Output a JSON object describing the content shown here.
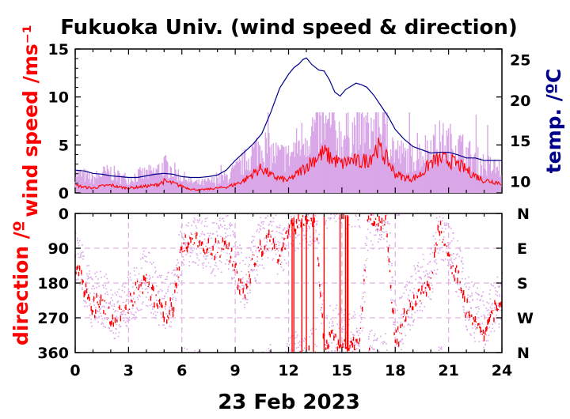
{
  "figure": {
    "title": "Fukuoka Univ. (wind speed & direction)",
    "date_label": "23 Feb 2023"
  },
  "colors": {
    "wind_mean": "#ff0000",
    "wind_gust": "#d9a6e8",
    "temperature": "#00008b",
    "grid": "#e4b4e4",
    "axis": "#000000"
  },
  "chart_data": [
    {
      "type": "line",
      "panel": "wind speed and temperature",
      "xlim": [
        0,
        24
      ],
      "x_ticks": [
        "0",
        "3",
        "6",
        "9",
        "12",
        "15",
        "18",
        "21",
        "24"
      ],
      "ylabel": "wind speed /ms⁻¹",
      "ylim": [
        0,
        15
      ],
      "y_ticks": [
        "0",
        "5",
        "10",
        "15"
      ],
      "y2label": "temp. /ºC",
      "y2lim": [
        8.6,
        26.3
      ],
      "y2_ticks": [
        "10",
        "15",
        "20",
        "25"
      ],
      "series": [
        {
          "axis": "y2",
          "x": [
            0,
            0.5,
            1,
            1.5,
            2,
            2.5,
            3,
            3.5,
            4,
            4.5,
            5,
            5.5,
            6,
            6.5,
            7,
            7.5,
            8,
            8.5,
            9,
            9.5,
            10,
            10.5,
            11,
            11.5,
            12,
            12.3,
            12.6,
            12.8,
            13,
            13.3,
            13.7,
            14,
            14.3,
            14.6,
            14.9,
            15.2,
            15.5,
            15.8,
            16.1,
            16.4,
            16.8,
            17.2,
            17.6,
            18,
            18.5,
            19,
            19.5,
            20,
            20.5,
            21,
            21.5,
            22,
            22.5,
            23,
            23.5,
            24
          ],
          "y": [
            11.4,
            11.3,
            11.0,
            10.9,
            10.7,
            10.6,
            10.5,
            10.5,
            10.7,
            10.9,
            11.0,
            10.9,
            10.6,
            10.5,
            10.5,
            10.6,
            10.8,
            11.4,
            12.6,
            13.6,
            14.6,
            15.9,
            18.5,
            21.5,
            23.2,
            24.0,
            24.5,
            25.0,
            25.2,
            24.4,
            23.7,
            23.6,
            22.5,
            21.0,
            20.5,
            21.3,
            21.7,
            22.1,
            21.9,
            21.6,
            20.6,
            19.3,
            18.0,
            16.4,
            15.2,
            14.3,
            13.9,
            13.5,
            13.6,
            13.6,
            13.3,
            12.9,
            12.9,
            12.6,
            12.6,
            12.6
          ]
        },
        {
          "x": [
            0,
            0.5,
            1,
            1.5,
            2,
            2.5,
            3,
            3.5,
            4,
            4.5,
            5,
            5.5,
            6,
            6.5,
            7,
            7.5,
            8,
            8.5,
            9,
            9.5,
            10,
            10.5,
            11,
            11.5,
            12,
            12.5,
            13,
            13.5,
            14,
            14.5,
            15,
            15.5,
            16,
            16.5,
            17,
            17.5,
            18,
            18.5,
            19,
            19.5,
            20,
            20.5,
            21,
            21.5,
            22,
            22.5,
            23,
            23.5,
            24
          ],
          "y": [
            0.8,
            0.6,
            0.5,
            0.7,
            0.8,
            0.6,
            0.5,
            0.6,
            0.7,
            0.8,
            1.2,
            1.0,
            0.7,
            0.4,
            0.3,
            0.4,
            0.5,
            0.6,
            0.9,
            1.3,
            2.0,
            2.6,
            1.8,
            1.5,
            1.3,
            2.0,
            2.8,
            3.6,
            4.2,
            3.5,
            3.0,
            3.4,
            3.2,
            3.5,
            4.8,
            3.6,
            2.0,
            1.6,
            1.5,
            2.0,
            3.2,
            3.5,
            3.4,
            3.0,
            2.4,
            1.8,
            1.3,
            1.2,
            1.0
          ]
        },
        {
          "x": [
            0,
            0.5,
            1,
            1.5,
            2,
            2.5,
            3,
            3.5,
            4,
            4.5,
            5,
            5.5,
            6,
            6.5,
            7,
            7.5,
            8,
            8.5,
            9,
            9.5,
            10,
            10.5,
            11,
            11.5,
            12,
            12.5,
            13,
            13.5,
            14,
            14.5,
            15,
            15.5,
            16,
            16.5,
            17,
            17.5,
            18,
            18.5,
            19,
            19.5,
            20,
            20.5,
            21,
            21.5,
            22,
            22.5,
            23,
            23.5,
            24
          ],
          "y": [
            2.5,
            2.2,
            1.8,
            2.4,
            2.6,
            2.0,
            1.8,
            2.2,
            2.4,
            2.6,
            3.5,
            2.8,
            2.0,
            1.4,
            1.2,
            1.4,
            1.6,
            2.0,
            2.8,
            3.8,
            5.0,
            6.2,
            5.0,
            4.6,
            4.5,
            6.0,
            7.2,
            8.0,
            8.2,
            7.6,
            7.0,
            7.8,
            7.6,
            8.0,
            8.2,
            7.4,
            5.2,
            4.6,
            4.4,
            5.0,
            6.0,
            6.4,
            6.2,
            6.0,
            5.0,
            4.2,
            3.6,
            3.2,
            3.0
          ]
        }
      ]
    },
    {
      "type": "scatter",
      "panel": "wind direction",
      "xlim": [
        0,
        24
      ],
      "x_ticks": [
        "0",
        "3",
        "6",
        "9",
        "12",
        "15",
        "18",
        "21",
        "24"
      ],
      "ylabel": "direction /º",
      "ylim": [
        0,
        360
      ],
      "y_ticks": [
        "0",
        "90",
        "180",
        "270",
        "360"
      ],
      "y_ticks_right": [
        "N",
        "E",
        "S",
        "W",
        "N"
      ],
      "grid": true,
      "series": [
        {
          "x": [
            0,
            0.5,
            1,
            1.5,
            2,
            2.5,
            3,
            3.5,
            4,
            4.5,
            5,
            5.5,
            6,
            6.5,
            7,
            7.5,
            8,
            8.5,
            9,
            9.5,
            10,
            10.5,
            11,
            11.5,
            12,
            12.5,
            13,
            13.5,
            14,
            14.5,
            15,
            15.5,
            16,
            16.5,
            17,
            17.5,
            18,
            18.5,
            19,
            19.5,
            20,
            20.5,
            21,
            21.5,
            22,
            22.5,
            23,
            23.5,
            24
          ],
          "y": [
            120,
            200,
            250,
            220,
            280,
            260,
            240,
            200,
            170,
            230,
            260,
            240,
            80,
            70,
            80,
            90,
            100,
            70,
            150,
            200,
            130,
            80,
            60,
            120,
            40,
            20,
            10,
            5,
            350,
            320,
            340,
            350,
            340,
            10,
            30,
            20,
            330,
            280,
            230,
            200,
            170,
            40,
            120,
            160,
            250,
            280,
            300,
            260,
            230
          ]
        },
        {
          "x": [
            0,
            0.5,
            1,
            1.5,
            2,
            2.5,
            3,
            3.5,
            4,
            4.5,
            5,
            5.5,
            6,
            6.5,
            7,
            7.5,
            8,
            8.5,
            9,
            9.5,
            10,
            10.5,
            11,
            11.5,
            12,
            12.5,
            13,
            13.5,
            14,
            14.5,
            15,
            15.5,
            16,
            16.5,
            17,
            17.5,
            18,
            18.5,
            19,
            19.5,
            20,
            20.5,
            21,
            21.5,
            22,
            22.5,
            23,
            23.5,
            24
          ],
          "y": [
            100,
            170,
            230,
            210,
            260,
            240,
            220,
            190,
            160,
            210,
            230,
            220,
            60,
            60,
            70,
            80,
            90,
            60,
            130,
            180,
            110,
            70,
            50,
            100,
            30,
            15,
            8,
            5,
            330,
            300,
            320,
            330,
            320,
            8,
            25,
            15,
            310,
            260,
            210,
            180,
            150,
            35,
            100,
            140,
            230,
            260,
            280,
            240,
            210
          ]
        }
      ]
    }
  ]
}
